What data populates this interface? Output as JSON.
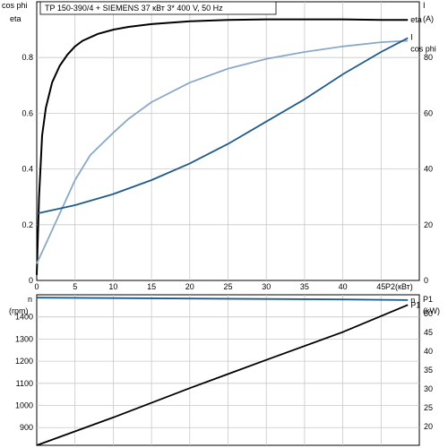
{
  "title": "TP 150-390/4 + SIEMENS    37 кВт   3* 400 V, 50 Hz",
  "colors": {
    "eta": "#000000",
    "current": "#1f5a8c",
    "cos_phi": "#8aa8c8",
    "speed": "#1f5a8c",
    "power": "#000000",
    "grid": "#c8c8c8"
  },
  "chart_data": [
    {
      "type": "line",
      "left_axis_labels": [
        "cos phi",
        "eta"
      ],
      "right_axis_labels": [
        "I",
        "(A)"
      ],
      "xlabel": "P2(кВт)",
      "x_ticks": [
        "0",
        "5",
        "10",
        "15",
        "20",
        "25",
        "30",
        "35",
        "40",
        "45"
      ],
      "y_left_ticks": [
        "0",
        "0.2",
        "0.4",
        "0.6",
        "0.8"
      ],
      "y_right_ticks": [
        "0",
        "20",
        "40",
        "60",
        "80"
      ],
      "xlim": [
        0,
        50
      ],
      "ylim_left": [
        0,
        1.0
      ],
      "ylim_right": [
        0,
        100
      ],
      "grid": true,
      "series": [
        {
          "name": "eta",
          "axis": "left",
          "color": "#000000",
          "points": [
            [
              0,
              0.02
            ],
            [
              0.3,
              0.3
            ],
            [
              0.7,
              0.52
            ],
            [
              1.2,
              0.62
            ],
            [
              2,
              0.71
            ],
            [
              3,
              0.77
            ],
            [
              4,
              0.81
            ],
            [
              5,
              0.84
            ],
            [
              6,
              0.86
            ],
            [
              8,
              0.885
            ],
            [
              10,
              0.9
            ],
            [
              12,
              0.91
            ],
            [
              15,
              0.92
            ],
            [
              20,
              0.93
            ],
            [
              25,
              0.935
            ],
            [
              30,
              0.937
            ],
            [
              35,
              0.937
            ],
            [
              40,
              0.937
            ],
            [
              45,
              0.935
            ],
            [
              48.5,
              0.935
            ]
          ]
        },
        {
          "name": "cos phi",
          "axis": "left",
          "color": "#8aa8c8",
          "points": [
            [
              0,
              0.06
            ],
            [
              1,
              0.12
            ],
            [
              2,
              0.18
            ],
            [
              3,
              0.24
            ],
            [
              4,
              0.3
            ],
            [
              5,
              0.36
            ],
            [
              7,
              0.45
            ],
            [
              10,
              0.53
            ],
            [
              12,
              0.58
            ],
            [
              15,
              0.64
            ],
            [
              20,
              0.71
            ],
            [
              25,
              0.76
            ],
            [
              30,
              0.795
            ],
            [
              35,
              0.82
            ],
            [
              40,
              0.84
            ],
            [
              45,
              0.855
            ],
            [
              48.5,
              0.86
            ]
          ]
        },
        {
          "name": "I",
          "axis": "right",
          "color": "#1f5a8c",
          "points": [
            [
              0,
              24
            ],
            [
              5,
              27
            ],
            [
              10,
              31
            ],
            [
              15,
              36
            ],
            [
              20,
              42
            ],
            [
              25,
              49
            ],
            [
              30,
              57
            ],
            [
              35,
              65
            ],
            [
              40,
              74
            ],
            [
              45,
              82
            ],
            [
              48.5,
              87
            ]
          ]
        }
      ]
    },
    {
      "type": "line",
      "left_axis_labels": [
        "n",
        "(rpm)"
      ],
      "right_axis_labels": [
        "P1",
        "(kW)"
      ],
      "y_left_ticks": [
        "900",
        "1000",
        "1100",
        "1200",
        "1300",
        "1400"
      ],
      "y_right_ticks": [
        "20",
        "25",
        "30",
        "35",
        "40",
        "45",
        "50"
      ],
      "xlim": [
        0,
        50
      ],
      "ylim_left": [
        820,
        1500
      ],
      "ylim_right": [
        15,
        55
      ],
      "grid": true,
      "series": [
        {
          "name": "n",
          "axis": "left",
          "color": "#1f5a8c",
          "points": [
            [
              0,
              1487
            ],
            [
              10,
              1485
            ],
            [
              20,
              1483
            ],
            [
              30,
              1481
            ],
            [
              40,
              1479
            ],
            [
              48.5,
              1476
            ]
          ]
        },
        {
          "name": "P1",
          "axis": "right",
          "color": "#000000",
          "points": [
            [
              0,
              15
            ],
            [
              10,
              22.4
            ],
            [
              20,
              30.2
            ],
            [
              30,
              37.7
            ],
            [
              40,
              45.1
            ],
            [
              48.5,
              52.3
            ]
          ]
        }
      ]
    }
  ]
}
